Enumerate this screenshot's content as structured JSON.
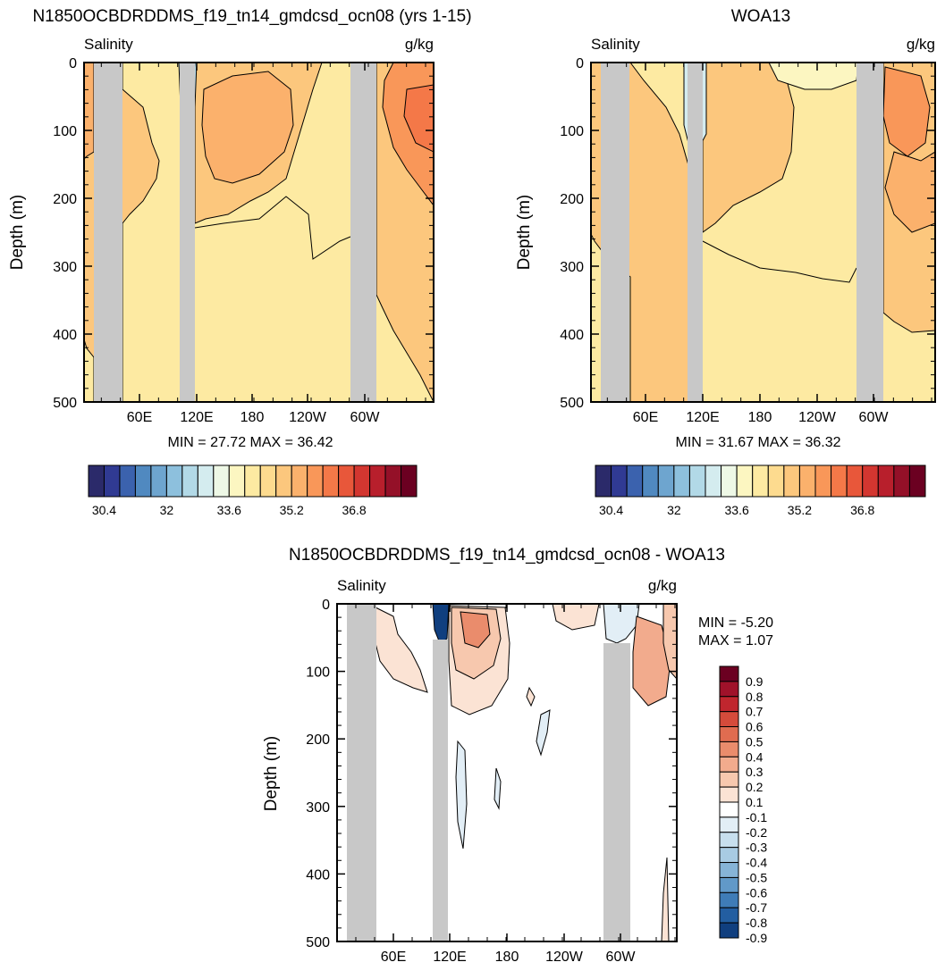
{
  "chart_data": [
    {
      "id": "model",
      "type": "heatmap",
      "title": "N1850OCBDRDDMS_f19_tn14_gmdcsd_ocn08 (yrs 1-15)",
      "left_label": "Salinity",
      "right_label": "g/kg",
      "ylabel": "Depth (m)",
      "xlabel": "",
      "x_ticks": [
        "60E",
        "120E",
        "180",
        "120W",
        "60W"
      ],
      "y_ticks": [
        "0",
        "100",
        "200",
        "300",
        "400",
        "500"
      ],
      "ylim": [
        0,
        500
      ],
      "stats": "MIN =  27.72  MAX =  36.42",
      "colorbar_labels": [
        "30.4",
        "32",
        "33.6",
        "35.2",
        "36.8"
      ],
      "colorbar_colors": [
        "#2b2a6a",
        "#303a93",
        "#3b62ae",
        "#5089c0",
        "#6ea5cf",
        "#8dc0dd",
        "#b2d9e7",
        "#d4ecef",
        "#eef8e6",
        "#fcf6c1",
        "#fdeaa2",
        "#fddb8f",
        "#fcc77d",
        "#fbb16c",
        "#f99759",
        "#f47848",
        "#e8573a",
        "#d33630",
        "#b81f2c",
        "#941028",
        "#6b0021"
      ]
    },
    {
      "id": "obs",
      "type": "heatmap",
      "title": "WOA13",
      "left_label": "Salinity",
      "right_label": "g/kg",
      "ylabel": "Depth (m)",
      "xlabel": "",
      "x_ticks": [
        "60E",
        "120E",
        "180",
        "120W",
        "60W"
      ],
      "y_ticks": [
        "0",
        "100",
        "200",
        "300",
        "400",
        "500"
      ],
      "ylim": [
        0,
        500
      ],
      "stats": "MIN =  31.67  MAX =  36.32",
      "colorbar_labels": [
        "30.4",
        "32",
        "33.6",
        "35.2",
        "36.8"
      ],
      "colorbar_colors": [
        "#2b2a6a",
        "#303a93",
        "#3b62ae",
        "#5089c0",
        "#6ea5cf",
        "#8dc0dd",
        "#b2d9e7",
        "#d4ecef",
        "#eef8e6",
        "#fcf6c1",
        "#fdeaa2",
        "#fddb8f",
        "#fcc77d",
        "#fbb16c",
        "#f99759",
        "#f47848",
        "#e8573a",
        "#d33630",
        "#b81f2c",
        "#941028",
        "#6b0021"
      ]
    },
    {
      "id": "diff",
      "type": "heatmap",
      "title": "N1850OCBDRDDMS_f19_tn14_gmdcsd_ocn08 - WOA13",
      "left_label": "Salinity",
      "right_label": "g/kg",
      "ylabel": "Depth (m)",
      "xlabel": "",
      "x_ticks": [
        "60E",
        "120E",
        "180",
        "120W",
        "60W"
      ],
      "y_ticks": [
        "0",
        "100",
        "200",
        "300",
        "400",
        "500"
      ],
      "ylim": [
        0,
        500
      ],
      "stats_min": "MIN =  -5.20",
      "stats_max": "MAX =   1.07",
      "colorbar_labels": [
        "0.9",
        "0.8",
        "0.7",
        "0.6",
        "0.5",
        "0.4",
        "0.3",
        "0.2",
        "0.1",
        "-0.1",
        "-0.2",
        "-0.3",
        "-0.4",
        "-0.5",
        "-0.6",
        "-0.7",
        "-0.8",
        "-0.9"
      ],
      "colorbar_colors": [
        "#6b0021",
        "#a0122a",
        "#c0262e",
        "#d54b3b",
        "#e06c50",
        "#ea8c6c",
        "#f2ab8d",
        "#f7c8ae",
        "#fbe3d4",
        "#ffffff",
        "#e2eef6",
        "#c7dfee",
        "#a8cbe3",
        "#86b4d7",
        "#6199c8",
        "#3f7cb7",
        "#235ea1",
        "#103f7f"
      ]
    }
  ]
}
